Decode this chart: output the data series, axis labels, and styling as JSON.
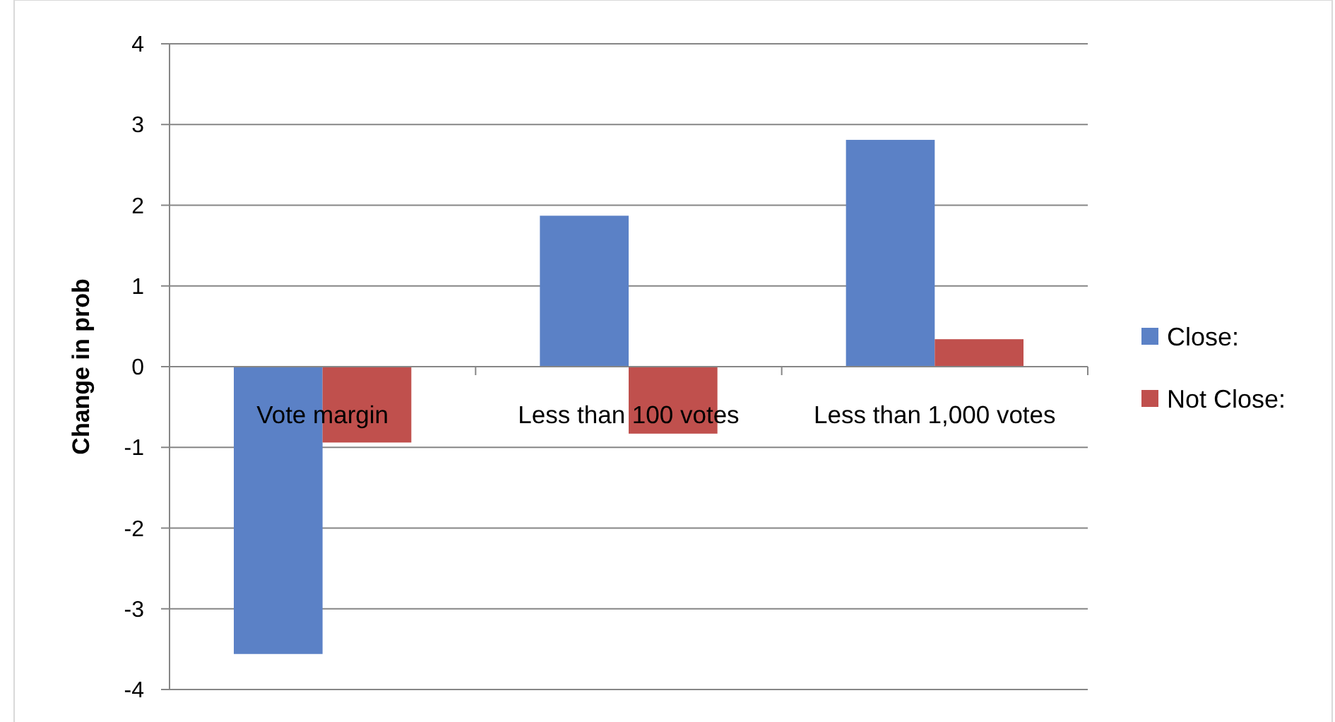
{
  "chart_data": {
    "type": "bar",
    "ylabel": "Change in prob",
    "categories": [
      "Vote margin",
      "Less than 100 votes",
      "Less than 1,000 votes"
    ],
    "series": [
      {
        "name": "Close:",
        "color": "#5b81c6",
        "values": [
          -3.56,
          1.87,
          2.81
        ]
      },
      {
        "name": "Not Close:",
        "color": "#c0504d",
        "values": [
          -0.94,
          -0.83,
          0.34
        ]
      }
    ],
    "ylim": [
      -4,
      4
    ],
    "yticks": [
      -4,
      -3,
      -2,
      -1,
      0,
      1,
      2,
      3,
      4
    ],
    "grid": "y",
    "legend": "right"
  }
}
